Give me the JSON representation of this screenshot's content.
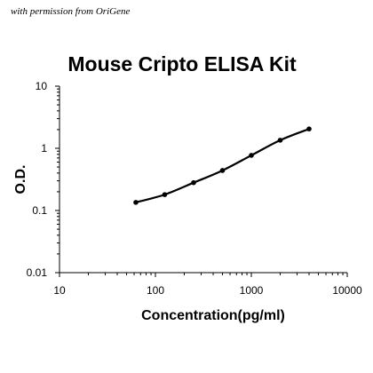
{
  "watermark": "with permission from OriGene",
  "chart_data": {
    "type": "line",
    "title": "Mouse Cripto ELISA Kit",
    "xlabel": "Concentration(pg/ml)",
    "ylabel": "O.D.",
    "xscale": "log",
    "yscale": "log",
    "xlim": [
      10,
      10000
    ],
    "ylim": [
      0.01,
      10
    ],
    "xticks": [
      "10",
      "100",
      "1000",
      "10000"
    ],
    "yticks": [
      "10",
      "1",
      "0.1",
      "0.01"
    ],
    "grid": false,
    "legend": "none",
    "line_color": "#000000",
    "series": [
      {
        "x": [
          62.5,
          125,
          250,
          500,
          1000,
          2000,
          4000
        ],
        "y": [
          0.135,
          0.18,
          0.28,
          0.44,
          0.77,
          1.35,
          2.05
        ]
      }
    ]
  }
}
